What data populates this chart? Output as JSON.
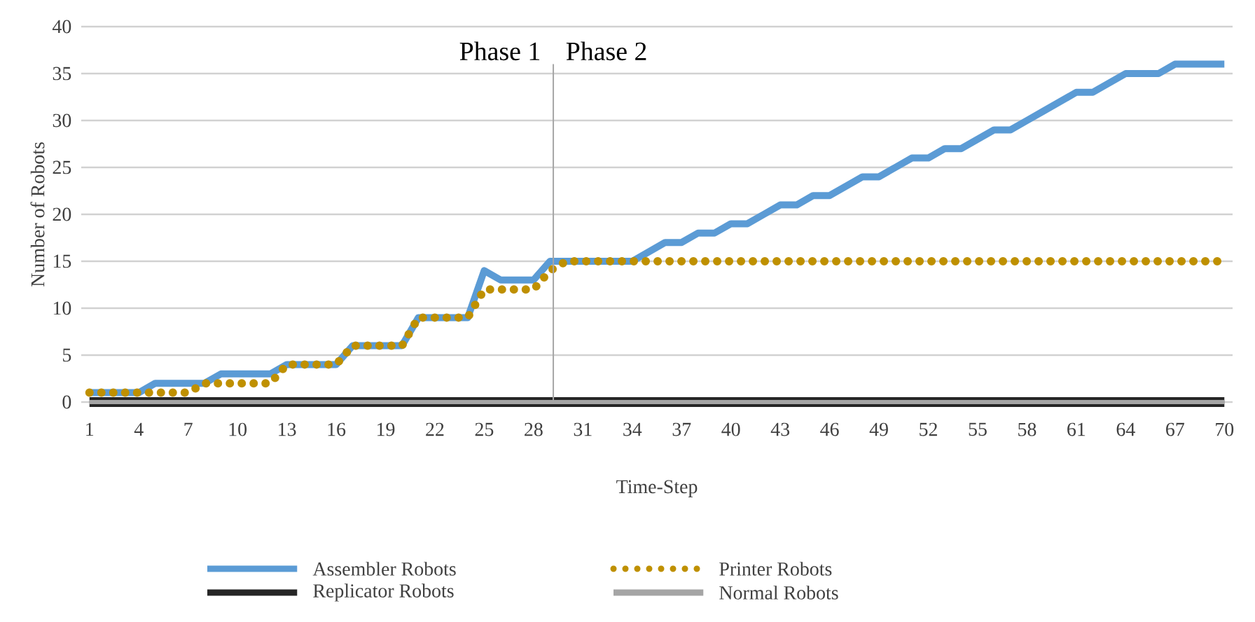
{
  "chart_data": {
    "type": "line",
    "xlabel": "Time-Step",
    "ylabel": "Number of Robots",
    "x": [
      1,
      2,
      3,
      4,
      5,
      6,
      7,
      8,
      9,
      10,
      11,
      12,
      13,
      14,
      15,
      16,
      17,
      18,
      19,
      20,
      21,
      22,
      23,
      24,
      25,
      26,
      27,
      28,
      29,
      30,
      31,
      32,
      33,
      34,
      35,
      36,
      37,
      38,
      39,
      40,
      41,
      42,
      43,
      44,
      45,
      46,
      47,
      48,
      49,
      50,
      51,
      52,
      53,
      54,
      55,
      56,
      57,
      58,
      59,
      60,
      61,
      62,
      63,
      64,
      65,
      66,
      67,
      68,
      69,
      70
    ],
    "xlim": [
      0.5,
      70.5
    ],
    "xticks": [
      1,
      4,
      7,
      10,
      13,
      16,
      19,
      22,
      25,
      28,
      31,
      34,
      37,
      40,
      43,
      46,
      49,
      52,
      55,
      58,
      61,
      64,
      67,
      70
    ],
    "ylim": [
      0,
      40
    ],
    "yticks": [
      0,
      5,
      10,
      15,
      20,
      25,
      30,
      35,
      40
    ],
    "grid": "y",
    "legend": "bottom",
    "marker": "none",
    "series": [
      {
        "name": "Assembler Robots",
        "color": "#5b9bd5",
        "line_style": "solid",
        "values": [
          1,
          1,
          1,
          1,
          2,
          2,
          2,
          2,
          3,
          3,
          3,
          3,
          4,
          4,
          4,
          4,
          6,
          6,
          6,
          6,
          9,
          9,
          9,
          9,
          14,
          13,
          13,
          13,
          15,
          15,
          15,
          15,
          15,
          15,
          16,
          17,
          17,
          18,
          18,
          19,
          19,
          20,
          21,
          21,
          22,
          22,
          23,
          24,
          24,
          25,
          26,
          26,
          27,
          27,
          28,
          29,
          29,
          30,
          31,
          32,
          33,
          33,
          34,
          35,
          35,
          35,
          36,
          36,
          36,
          36
        ]
      },
      {
        "name": "Printer Robots",
        "color": "#bf9000",
        "line_style": "dotted",
        "values": [
          1,
          1,
          1,
          1,
          1,
          1,
          1,
          2,
          2,
          2,
          2,
          2,
          4,
          4,
          4,
          4,
          6,
          6,
          6,
          6,
          9,
          9,
          9,
          9,
          12,
          12,
          12,
          12,
          14,
          15,
          15,
          15,
          15,
          15,
          15,
          15,
          15,
          15,
          15,
          15,
          15,
          15,
          15,
          15,
          15,
          15,
          15,
          15,
          15,
          15,
          15,
          15,
          15,
          15,
          15,
          15,
          15,
          15,
          15,
          15,
          15,
          15,
          15,
          15,
          15,
          15,
          15,
          15,
          15,
          15
        ]
      },
      {
        "name": "Replicator Robots",
        "color": "#262626",
        "line_style": "solid",
        "values": [
          0,
          0,
          0,
          0,
          0,
          0,
          0,
          0,
          0,
          0,
          0,
          0,
          0,
          0,
          0,
          0,
          0,
          0,
          0,
          0,
          0,
          0,
          0,
          0,
          0,
          0,
          0,
          0,
          0,
          0,
          0,
          0,
          0,
          0,
          0,
          0,
          0,
          0,
          0,
          0,
          0,
          0,
          0,
          0,
          0,
          0,
          0,
          0,
          0,
          0,
          0,
          0,
          0,
          0,
          0,
          0,
          0,
          0,
          0,
          0,
          0,
          0,
          0,
          0,
          0,
          0,
          0,
          0,
          0,
          0
        ]
      },
      {
        "name": "Normal Robots",
        "color": "#a5a5a5",
        "line_style": "solid",
        "values": [
          0,
          0,
          0,
          0,
          0,
          0,
          0,
          0,
          0,
          0,
          0,
          0,
          0,
          0,
          0,
          0,
          0,
          0,
          0,
          0,
          0,
          0,
          0,
          0,
          0,
          0,
          0,
          0,
          0,
          0,
          0,
          0,
          0,
          0,
          0,
          0,
          0,
          0,
          0,
          0,
          0,
          0,
          0,
          0,
          0,
          0,
          0,
          0,
          0,
          0,
          0,
          0,
          0,
          0,
          0,
          0,
          0,
          0,
          0,
          0,
          0,
          0,
          0,
          0,
          0,
          0,
          0,
          0,
          0,
          0
        ]
      }
    ],
    "ref_lines": [
      {
        "axis": "x",
        "value": 29.2,
        "color": "#a6a6a6"
      }
    ],
    "annotations": [
      "Phase 1",
      "Phase 2"
    ]
  }
}
